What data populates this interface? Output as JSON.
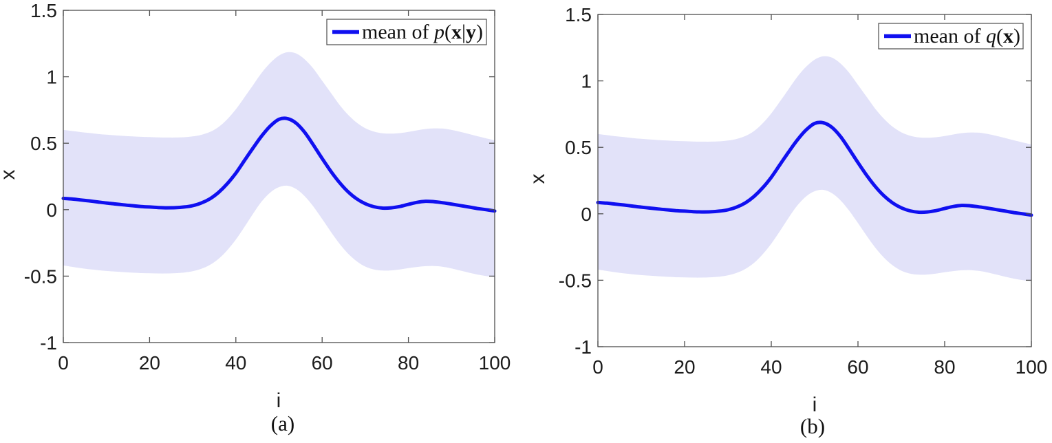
{
  "figure": {
    "colors": {
      "line": "#1010f0",
      "band": "#e2e2f9",
      "axis": "#4f4f4f",
      "tick_text": "#1c1c1c",
      "legend_border": "#4c4c4c",
      "legend_text": "#111111",
      "background": "#ffffff"
    },
    "panels": [
      {
        "id": "a",
        "caption": "(a)",
        "legend": {
          "plain": "mean of p(x|y)",
          "parts": [
            {
              "text": "mean of ",
              "style": "roman"
            },
            {
              "text": "p",
              "style": "italic"
            },
            {
              "text": "(",
              "style": "roman"
            },
            {
              "text": "x",
              "style": "bold"
            },
            {
              "text": "|",
              "style": "roman"
            },
            {
              "text": "y",
              "style": "bold"
            },
            {
              "text": ")",
              "style": "roman"
            }
          ]
        }
      },
      {
        "id": "b",
        "caption": "(b)",
        "legend": {
          "plain": "mean of q(x)",
          "parts": [
            {
              "text": "mean of ",
              "style": "roman"
            },
            {
              "text": "q",
              "style": "italic"
            },
            {
              "text": "(",
              "style": "roman"
            },
            {
              "text": "x",
              "style": "bold"
            },
            {
              "text": ")",
              "style": "roman"
            }
          ]
        }
      }
    ]
  },
  "chart_data": [
    {
      "type": "line",
      "title": "",
      "xlabel": "i",
      "ylabel": "x",
      "xlim": [
        0,
        100
      ],
      "ylim": [
        -1,
        1.5
      ],
      "x_ticks": [
        0,
        20,
        40,
        60,
        80,
        100
      ],
      "y_ticks": [
        -1,
        -0.5,
        0,
        0.5,
        1,
        1.5
      ],
      "x_tick_labels": [
        "0",
        "20",
        "40",
        "60",
        "80",
        "100"
      ],
      "y_tick_labels": [
        "-1",
        "-0.5",
        "0",
        "0.5",
        "1",
        "1.5"
      ],
      "grid": false,
      "legend": [
        "mean of p(x|y)"
      ],
      "legend_position": "upper right",
      "x": [
        0,
        2,
        4,
        6,
        8,
        10,
        12,
        14,
        16,
        18,
        20,
        22,
        24,
        26,
        28,
        30,
        32,
        34,
        36,
        38,
        40,
        42,
        44,
        46,
        48,
        50,
        52,
        54,
        56,
        58,
        60,
        62,
        64,
        66,
        68,
        70,
        72,
        74,
        76,
        78,
        80,
        82,
        84,
        86,
        88,
        90,
        92,
        94,
        96,
        98,
        100
      ],
      "series": [
        {
          "name": "mean of p(x|y)",
          "role": "posterior mean",
          "color": "#1010f0",
          "values": [
            0.085,
            0.08,
            0.073,
            0.066,
            0.058,
            0.05,
            0.043,
            0.036,
            0.03,
            0.024,
            0.02,
            0.016,
            0.014,
            0.015,
            0.02,
            0.03,
            0.05,
            0.082,
            0.13,
            0.195,
            0.275,
            0.37,
            0.465,
            0.555,
            0.63,
            0.68,
            0.685,
            0.65,
            0.58,
            0.485,
            0.385,
            0.29,
            0.205,
            0.135,
            0.082,
            0.045,
            0.022,
            0.012,
            0.014,
            0.024,
            0.04,
            0.055,
            0.063,
            0.06,
            0.052,
            0.042,
            0.031,
            0.02,
            0.009,
            0.0,
            -0.01
          ]
        }
      ],
      "band": {
        "role": "uncertainty band",
        "color": "#e2e2f9",
        "upper": [
          0.6,
          0.592,
          0.584,
          0.577,
          0.57,
          0.564,
          0.559,
          0.555,
          0.551,
          0.548,
          0.546,
          0.544,
          0.543,
          0.543,
          0.545,
          0.551,
          0.563,
          0.585,
          0.622,
          0.68,
          0.755,
          0.845,
          0.938,
          1.03,
          1.105,
          1.16,
          1.185,
          1.175,
          1.13,
          1.06,
          0.97,
          0.88,
          0.79,
          0.715,
          0.655,
          0.613,
          0.588,
          0.575,
          0.572,
          0.576,
          0.585,
          0.597,
          0.607,
          0.612,
          0.61,
          0.6,
          0.586,
          0.57,
          0.553,
          0.537,
          0.522
        ],
        "lower": [
          -0.42,
          -0.43,
          -0.44,
          -0.448,
          -0.455,
          -0.461,
          -0.466,
          -0.47,
          -0.474,
          -0.477,
          -0.479,
          -0.48,
          -0.48,
          -0.478,
          -0.473,
          -0.463,
          -0.445,
          -0.415,
          -0.37,
          -0.305,
          -0.225,
          -0.13,
          -0.03,
          0.062,
          0.13,
          0.17,
          0.18,
          0.155,
          0.1,
          0.022,
          -0.07,
          -0.165,
          -0.255,
          -0.33,
          -0.388,
          -0.428,
          -0.45,
          -0.458,
          -0.457,
          -0.45,
          -0.44,
          -0.431,
          -0.425,
          -0.424,
          -0.43,
          -0.442,
          -0.458,
          -0.474,
          -0.488,
          -0.499,
          -0.507
        ]
      }
    },
    {
      "type": "line",
      "title": "",
      "xlabel": "i",
      "ylabel": "x",
      "xlim": [
        0,
        100
      ],
      "ylim": [
        -1,
        1.5
      ],
      "x_ticks": [
        0,
        20,
        40,
        60,
        80,
        100
      ],
      "y_ticks": [
        -1,
        -0.5,
        0,
        0.5,
        1,
        1.5
      ],
      "x_tick_labels": [
        "0",
        "20",
        "40",
        "60",
        "80",
        "100"
      ],
      "y_tick_labels": [
        "-1",
        "-0.5",
        "0",
        "0.5",
        "1",
        "1.5"
      ],
      "grid": false,
      "legend": [
        "mean of q(x)"
      ],
      "legend_position": "upper right",
      "x": [
        0,
        2,
        4,
        6,
        8,
        10,
        12,
        14,
        16,
        18,
        20,
        22,
        24,
        26,
        28,
        30,
        32,
        34,
        36,
        38,
        40,
        42,
        44,
        46,
        48,
        50,
        52,
        54,
        56,
        58,
        60,
        62,
        64,
        66,
        68,
        70,
        72,
        74,
        76,
        78,
        80,
        82,
        84,
        86,
        88,
        90,
        92,
        94,
        96,
        98,
        100
      ],
      "series": [
        {
          "name": "mean of q(x)",
          "role": "variational mean",
          "color": "#1010f0",
          "values": [
            0.085,
            0.08,
            0.073,
            0.066,
            0.058,
            0.05,
            0.043,
            0.036,
            0.03,
            0.024,
            0.02,
            0.016,
            0.014,
            0.015,
            0.02,
            0.03,
            0.05,
            0.082,
            0.13,
            0.195,
            0.275,
            0.37,
            0.465,
            0.555,
            0.63,
            0.68,
            0.685,
            0.65,
            0.58,
            0.485,
            0.385,
            0.29,
            0.205,
            0.135,
            0.082,
            0.045,
            0.022,
            0.012,
            0.014,
            0.024,
            0.04,
            0.055,
            0.063,
            0.06,
            0.052,
            0.042,
            0.031,
            0.02,
            0.009,
            0.0,
            -0.01
          ]
        }
      ],
      "band": {
        "role": "uncertainty band",
        "color": "#e2e2f9",
        "upper": [
          0.6,
          0.592,
          0.584,
          0.577,
          0.57,
          0.564,
          0.559,
          0.555,
          0.551,
          0.548,
          0.546,
          0.544,
          0.543,
          0.543,
          0.545,
          0.551,
          0.563,
          0.585,
          0.622,
          0.68,
          0.755,
          0.845,
          0.938,
          1.03,
          1.105,
          1.16,
          1.185,
          1.175,
          1.13,
          1.06,
          0.97,
          0.88,
          0.79,
          0.715,
          0.655,
          0.613,
          0.588,
          0.575,
          0.572,
          0.576,
          0.585,
          0.597,
          0.607,
          0.612,
          0.61,
          0.6,
          0.586,
          0.57,
          0.553,
          0.537,
          0.522
        ],
        "lower": [
          -0.42,
          -0.43,
          -0.44,
          -0.448,
          -0.455,
          -0.461,
          -0.466,
          -0.47,
          -0.474,
          -0.477,
          -0.479,
          -0.48,
          -0.48,
          -0.478,
          -0.473,
          -0.463,
          -0.445,
          -0.415,
          -0.37,
          -0.305,
          -0.225,
          -0.13,
          -0.03,
          0.062,
          0.13,
          0.17,
          0.18,
          0.155,
          0.1,
          0.022,
          -0.07,
          -0.165,
          -0.255,
          -0.33,
          -0.388,
          -0.428,
          -0.45,
          -0.458,
          -0.457,
          -0.45,
          -0.44,
          -0.431,
          -0.425,
          -0.424,
          -0.43,
          -0.442,
          -0.458,
          -0.474,
          -0.488,
          -0.499,
          -0.507
        ]
      }
    }
  ]
}
